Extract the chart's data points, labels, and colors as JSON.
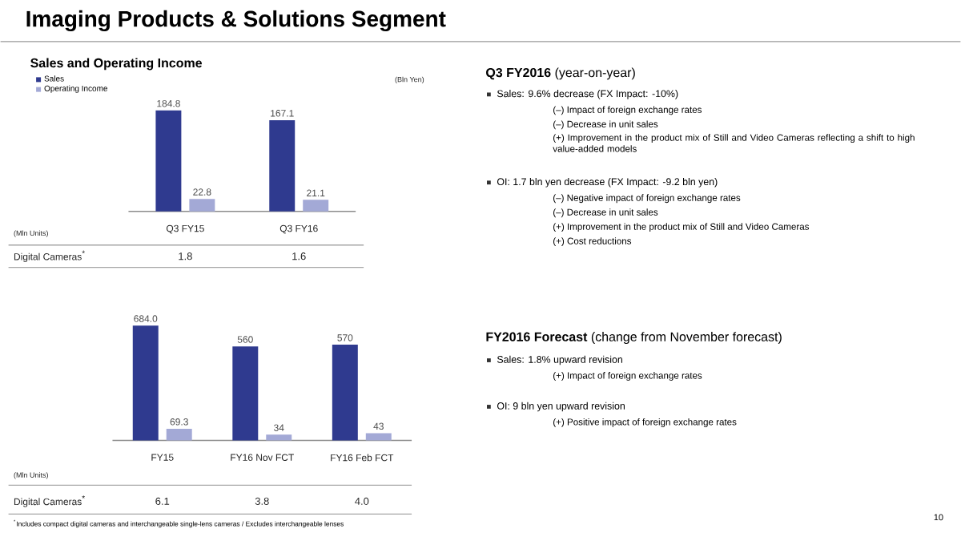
{
  "chart_data": [
    {
      "type": "bar",
      "title": "Sales and Operating Income",
      "categories": [
        "Q3 FY15",
        "Q3 FY16"
      ],
      "legend": "top left",
      "series": [
        {
          "name": "Sales",
          "color": "#2f3a8f",
          "values": [
            184.8,
            167.1
          ],
          "value_labels": [
            "184.8",
            "167.1"
          ]
        },
        {
          "name": "Operating Income",
          "color": "#a3a9d6",
          "values": [
            22.8,
            21.1
          ],
          "value_labels": [
            "22.8",
            "21.1"
          ]
        }
      ],
      "annotations": [
        "(Bln Yen)",
        "(Mln Units)",
        "Digital Cameras$^{*}$",
        "1.8",
        "1.6"
      ]
    },
    {
      "type": "bar",
      "categories": [
        "FY15",
        "FY16 Nov FCT",
        "FY16 Feb FCT"
      ],
      "series": [
        {
          "color": "#2f3a8f",
          "values": [
            684.0,
            560,
            570
          ],
          "value_labels": [
            "684.0",
            "560",
            "570"
          ]
        },
        {
          "color": "#a3a9d6",
          "values": [
            69.3,
            34,
            43
          ],
          "value_labels": [
            "69.3",
            "34",
            "43"
          ]
        }
      ],
      "annotations": [
        "(Mln Units)",
        "Digital Cameras$^{*}$",
        "6.1",
        "3.8",
        "4.0"
      ]
    },
    {
      "type": "other",
      "title": "Imaging Products & Solutions Segment",
      "annotations": [
        "**Q3 FY2016** (year-on-year)",
        "Sales: 9.6% decrease (FX Impact:  -10%)",
        "(–) Impact of foreign exchange rates",
        "(–) Decrease in unit sales",
        "(+) Improvement in the product mix of Still and Video Cameras reflecting a shift to high value-added models",
        "OI: 1.7 bln yen decrease (FX Impact: -9.2 bln yen)",
        "(–) Negative impact of foreign exchange rates",
        "(–) Decrease in unit sales",
        "(+) Improvement in the product mix of Still and Video Cameras",
        "(+) Cost reductions",
        "**FY2016 Forecast** (change from November forecast)",
        "Sales: 1.8% upward revision",
        "(+) Impact of foreign exchange rates",
        "OI: 9 bln yen upward revision",
        "(+) Positive impact of foreign exchange rates",
        "$^{*}$Includes compact digital cameras and interchangeable single-lens cameras / Excludes interchangeable lenses",
        "10"
      ]
    }
  ]
}
